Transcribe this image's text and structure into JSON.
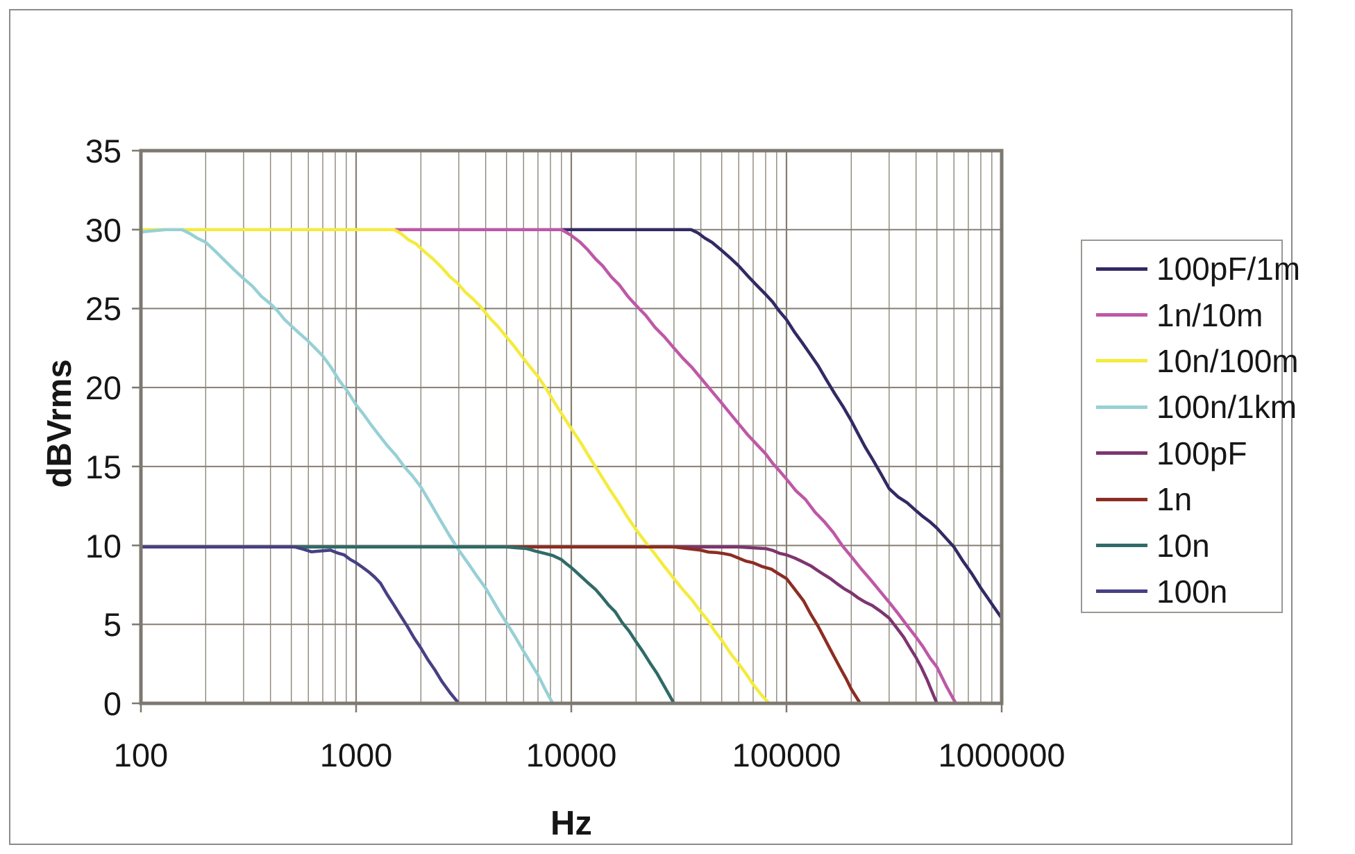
{
  "figure": {
    "background": "#ffffff",
    "frame_color": "#8a8a8a"
  },
  "axes": {
    "x": {
      "label": "Hz",
      "scale": "log",
      "min": 100,
      "max": 1000000,
      "tick_labels": [
        "100",
        "1000",
        "10000",
        "100000",
        "1000000"
      ],
      "tick_values": [
        100,
        1000,
        10000,
        100000,
        1000000
      ]
    },
    "y": {
      "label": "dBVrms",
      "scale": "linear",
      "min": 0,
      "max": 35,
      "tick_labels": [
        "0",
        "5",
        "10",
        "15",
        "20",
        "25",
        "30",
        "35"
      ],
      "tick_values": [
        0,
        5,
        10,
        15,
        20,
        25,
        30,
        35
      ]
    }
  },
  "grid": {
    "minor_color": "#8d867b",
    "major_color": "#857e73",
    "axis_border_color": "#7d7870"
  },
  "legend": {
    "position": "right",
    "border_color": "#9a9893",
    "items": [
      "100pF/1m",
      "1n/10m",
      "10n/100m",
      "100n/1km",
      "100pF",
      "1n",
      "10n",
      "100n"
    ]
  },
  "chart_data": {
    "type": "line",
    "title": "",
    "xlabel": "Hz",
    "ylabel": "dBVrms",
    "x_scale": "log",
    "xlim": [
      100,
      1000000
    ],
    "ylim": [
      0,
      35
    ],
    "grid": true,
    "legend_position": "right",
    "series": [
      {
        "name": "100pF/1m",
        "color": "#312a63",
        "plateau_db": 30,
        "points": [
          [
            100,
            30
          ],
          [
            20000,
            30
          ],
          [
            36000,
            30
          ],
          [
            45000,
            29.2
          ],
          [
            60000,
            27.7
          ],
          [
            80000,
            25.9
          ],
          [
            100000,
            24.3
          ],
          [
            140000,
            21.4
          ],
          [
            200000,
            17.9
          ],
          [
            250000,
            15.5
          ],
          [
            300000,
            13.6
          ],
          [
            400000,
            12.2
          ],
          [
            500000,
            11.1
          ],
          [
            600000,
            9.9
          ],
          [
            800000,
            7.3
          ],
          [
            1000000,
            5.4
          ]
        ]
      },
      {
        "name": "1n/10m",
        "color": "#be58a6",
        "plateau_db": 30,
        "points": [
          [
            100,
            30
          ],
          [
            9000,
            30
          ],
          [
            11000,
            29.2
          ],
          [
            14000,
            27.7
          ],
          [
            20000,
            25.2
          ],
          [
            30000,
            22.5
          ],
          [
            40000,
            20.6
          ],
          [
            60000,
            17.7
          ],
          [
            80000,
            15.8
          ],
          [
            100000,
            14.2
          ],
          [
            150000,
            11.5
          ],
          [
            200000,
            9.3
          ],
          [
            300000,
            6.4
          ],
          [
            400000,
            4.2
          ],
          [
            500000,
            2.3
          ],
          [
            612000,
            0
          ]
        ]
      },
      {
        "name": "10n/100m",
        "color": "#f4eb3e",
        "plateau_db": 30,
        "points": [
          [
            100,
            30
          ],
          [
            1500,
            30
          ],
          [
            1900,
            29.1
          ],
          [
            2500,
            27.6
          ],
          [
            3500,
            25.6
          ],
          [
            5000,
            23.2
          ],
          [
            7000,
            20.7
          ],
          [
            10000,
            17.4
          ],
          [
            15000,
            13.6
          ],
          [
            20000,
            11.0
          ],
          [
            30000,
            7.9
          ],
          [
            40000,
            5.8
          ],
          [
            50000,
            4.0
          ],
          [
            60000,
            2.5
          ],
          [
            70000,
            1.2
          ],
          [
            83000,
            0
          ]
        ]
      },
      {
        "name": "100n/1km",
        "color": "#97d0d5",
        "plateau_db": 30,
        "points": [
          [
            100,
            29.85
          ],
          [
            130,
            30
          ],
          [
            155,
            30
          ],
          [
            200,
            29.2
          ],
          [
            300,
            26.9
          ],
          [
            400,
            25.3
          ],
          [
            500,
            23.9
          ],
          [
            700,
            22.0
          ],
          [
            1000,
            18.9
          ],
          [
            1400,
            16.3
          ],
          [
            2000,
            13.7
          ],
          [
            3000,
            9.7
          ],
          [
            4000,
            7.3
          ],
          [
            5000,
            5.1
          ],
          [
            6000,
            3.3
          ],
          [
            7000,
            1.8
          ],
          [
            8200,
            0
          ]
        ]
      },
      {
        "name": "100pF",
        "color": "#7d356f",
        "plateau_db": 10,
        "points": [
          [
            100,
            9.9
          ],
          [
            60000,
            9.9
          ],
          [
            80000,
            9.8
          ],
          [
            100000,
            9.4
          ],
          [
            130000,
            8.7
          ],
          [
            160000,
            7.9
          ],
          [
            200000,
            7.0
          ],
          [
            250000,
            6.2
          ],
          [
            300000,
            5.4
          ],
          [
            350000,
            4.2
          ],
          [
            400000,
            2.9
          ],
          [
            450000,
            1.5
          ],
          [
            500000,
            0
          ]
        ]
      },
      {
        "name": "1n",
        "color": "#8c2d23",
        "plateau_db": 10,
        "points": [
          [
            100,
            9.9
          ],
          [
            30000,
            9.9
          ],
          [
            40000,
            9.7
          ],
          [
            55000,
            9.4
          ],
          [
            70000,
            8.9
          ],
          [
            85000,
            8.5
          ],
          [
            100000,
            7.9
          ],
          [
            120000,
            6.5
          ],
          [
            140000,
            4.9
          ],
          [
            160000,
            3.4
          ],
          [
            180000,
            2.1
          ],
          [
            200000,
            0.9
          ],
          [
            220000,
            0
          ]
        ]
      },
      {
        "name": "10n",
        "color": "#2f6b68",
        "plateau_db": 10,
        "points": [
          [
            100,
            9.9
          ],
          [
            5000,
            9.9
          ],
          [
            6200,
            9.8
          ],
          [
            7500,
            9.5
          ],
          [
            9000,
            9.1
          ],
          [
            10000,
            8.6
          ],
          [
            13000,
            7.2
          ],
          [
            16000,
            5.8
          ],
          [
            20000,
            3.9
          ],
          [
            25000,
            1.9
          ],
          [
            30000,
            0
          ]
        ]
      },
      {
        "name": "100n",
        "color": "#474084",
        "plateau_db": 10,
        "points": [
          [
            100,
            9.9
          ],
          [
            520,
            9.9
          ],
          [
            620,
            9.6
          ],
          [
            760,
            9.7
          ],
          [
            880,
            9.4
          ],
          [
            1000,
            8.9
          ],
          [
            1150,
            8.3
          ],
          [
            1300,
            7.6
          ],
          [
            1600,
            5.6
          ],
          [
            2000,
            3.5
          ],
          [
            2500,
            1.4
          ],
          [
            3000,
            0
          ]
        ]
      }
    ]
  }
}
